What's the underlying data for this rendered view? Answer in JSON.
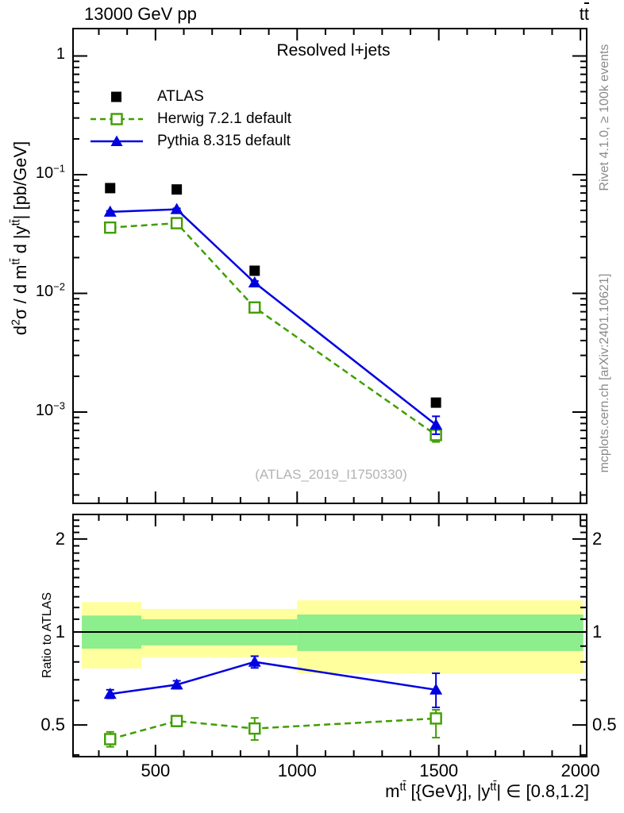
{
  "header": {
    "left": "13000 GeV pp",
    "right_rich": [
      {
        "text": "t"
      },
      {
        "text": "t",
        "bar": true
      }
    ]
  },
  "main": {
    "title": "Resolved l+jets",
    "watermark": "(ATLAS_2019_I1750330)",
    "ylabel_rich": [
      {
        "text": "d"
      },
      {
        "text": "2",
        "sup": true
      },
      {
        "text": "σ / d m"
      },
      {
        "text": "t",
        "sup": true
      },
      {
        "text": "t",
        "sup": true,
        "bar": true
      },
      {
        "text": " d |y"
      },
      {
        "text": "t",
        "sup": true
      },
      {
        "text": "t",
        "sup": true,
        "bar": true
      },
      {
        "text": "| [pb/GeV]"
      }
    ],
    "yticks": [
      {
        "v": 1,
        "rich": [
          {
            "text": "1"
          }
        ]
      },
      {
        "v": 0.1,
        "rich": [
          {
            "text": "10"
          },
          {
            "text": "−1",
            "sup": true
          }
        ]
      },
      {
        "v": 0.01,
        "rich": [
          {
            "text": "10"
          },
          {
            "text": "−2",
            "sup": true
          }
        ]
      },
      {
        "v": 0.001,
        "rich": [
          {
            "text": "10"
          },
          {
            "text": "−3",
            "sup": true
          }
        ]
      }
    ]
  },
  "ratio_panel": {
    "ylabel": "Ratio to ATLAS",
    "yticks": [
      {
        "v": 2,
        "label": "2"
      },
      {
        "v": 1,
        "label": "1"
      },
      {
        "v": 0.5,
        "label": "0.5"
      }
    ]
  },
  "xaxis": {
    "label_rich": [
      {
        "text": "m"
      },
      {
        "text": "t",
        "sup": true
      },
      {
        "text": "t",
        "sup": true,
        "bar": true
      },
      {
        "text": " [{GeV}], |y"
      },
      {
        "text": "t",
        "sup": true
      },
      {
        "text": "t",
        "sup": true,
        "bar": true
      },
      {
        "text": "| ∈ [0.8,1.2]"
      }
    ],
    "ticks": [
      {
        "v": 500,
        "label": "500"
      },
      {
        "v": 1000,
        "label": "1000"
      },
      {
        "v": 1500,
        "label": "1500"
      },
      {
        "v": 2000,
        "label": "2000"
      }
    ]
  },
  "side": {
    "rivet": "Rivet 4.1.0, ≥ 100k events",
    "mcplots": "mcplots.cern.ch [arXiv:2401.10621]"
  },
  "legend": [
    {
      "id": "atlas",
      "label": "ATLAS"
    },
    {
      "id": "herwig",
      "label": "Herwig 7.2.1 default"
    },
    {
      "id": "pythia",
      "label": "Pythia 8.315 default"
    }
  ],
  "colors": {
    "black": "#000000",
    "pythia_blue": "#0000e0",
    "herwig_green": "#3f9e00",
    "band_yellow": "#ffff9e",
    "band_green": "#8cee8c",
    "gray_text": "#8a8a8a",
    "watermark": "#b3b3b3"
  },
  "chart_data": {
    "type": "line",
    "title": "Resolved l+jets",
    "xlabel": "m^tt [{GeV}], |y^tt| in [0.8,1.2]",
    "ylabel": "d2sigma / d m^tt d |y^tt| [pb/GeV]",
    "x": [
      340,
      575,
      850,
      1490
    ],
    "xlim": [
      209,
      2022
    ],
    "ylim": [
      0.00017,
      1.7
    ],
    "xticks": [
      500,
      1000,
      1500,
      2000
    ],
    "xminor_step": 100,
    "yticks": [
      1,
      0.1,
      0.01,
      0.001
    ],
    "grid": false,
    "legend_position": "top-left",
    "series": [
      {
        "name": "ATLAS",
        "marker": "filled-square",
        "color": "#000000",
        "values": [
          0.077,
          0.075,
          0.0155,
          0.0012
        ],
        "err_lo": [
          0,
          0,
          0,
          0
        ],
        "err_hi": [
          0,
          0,
          0,
          0
        ]
      },
      {
        "name": "Herwig 7.2.1 default",
        "marker": "open-square",
        "line": "dashed",
        "color": "#3f9e00",
        "values": [
          0.0358,
          0.039,
          0.0076,
          0.00064
        ],
        "err_lo": [
          0.0012,
          0.001,
          0.0005,
          8e-05
        ],
        "err_hi": [
          0.0012,
          0.001,
          0.0005,
          8e-05
        ]
      },
      {
        "name": "Pythia 8.315 default",
        "marker": "filled-triangle",
        "line": "solid",
        "color": "#0000e0",
        "values": [
          0.0485,
          0.051,
          0.0123,
          0.00078
        ],
        "err_lo": [
          0.001,
          0.001,
          0.0004,
          0.00013
        ],
        "err_hi": [
          0.001,
          0.001,
          0.0004,
          0.00014
        ]
      }
    ],
    "ratio": {
      "ylabel": "Ratio to ATLAS",
      "ylim": [
        0.395,
        2.4
      ],
      "yticks": [
        0.5,
        1,
        2
      ],
      "reference_line": 1,
      "series": [
        {
          "name": "Herwig 7.2.1 default",
          "color": "#3f9e00",
          "line": "dashed",
          "marker": "open-square",
          "values": [
            0.45,
            0.515,
            0.487,
            0.525
          ],
          "err_lo": [
            0.025,
            0.02,
            0.04,
            0.07
          ],
          "err_hi": [
            0.025,
            0.02,
            0.04,
            0.035
          ]
        },
        {
          "name": "Pythia 8.315 default",
          "color": "#0000e0",
          "line": "solid",
          "marker": "filled-triangle",
          "values": [
            0.63,
            0.675,
            0.8,
            0.65
          ],
          "err_lo": [
            0.02,
            0.02,
            0.035,
            0.08
          ],
          "err_hi": [
            0.02,
            0.02,
            0.035,
            0.085
          ]
        }
      ],
      "bands": [
        {
          "x0": 240,
          "x1": 450,
          "yellow": [
            0.762,
            1.25
          ],
          "green": [
            0.883,
            1.13
          ]
        },
        {
          "x0": 450,
          "x1": 1000,
          "yellow": [
            0.828,
            1.187
          ],
          "green": [
            0.905,
            1.099
          ]
        },
        {
          "x0": 1000,
          "x1": 2010,
          "yellow": [
            0.735,
            1.266
          ],
          "green": [
            0.868,
            1.139
          ]
        }
      ]
    }
  }
}
